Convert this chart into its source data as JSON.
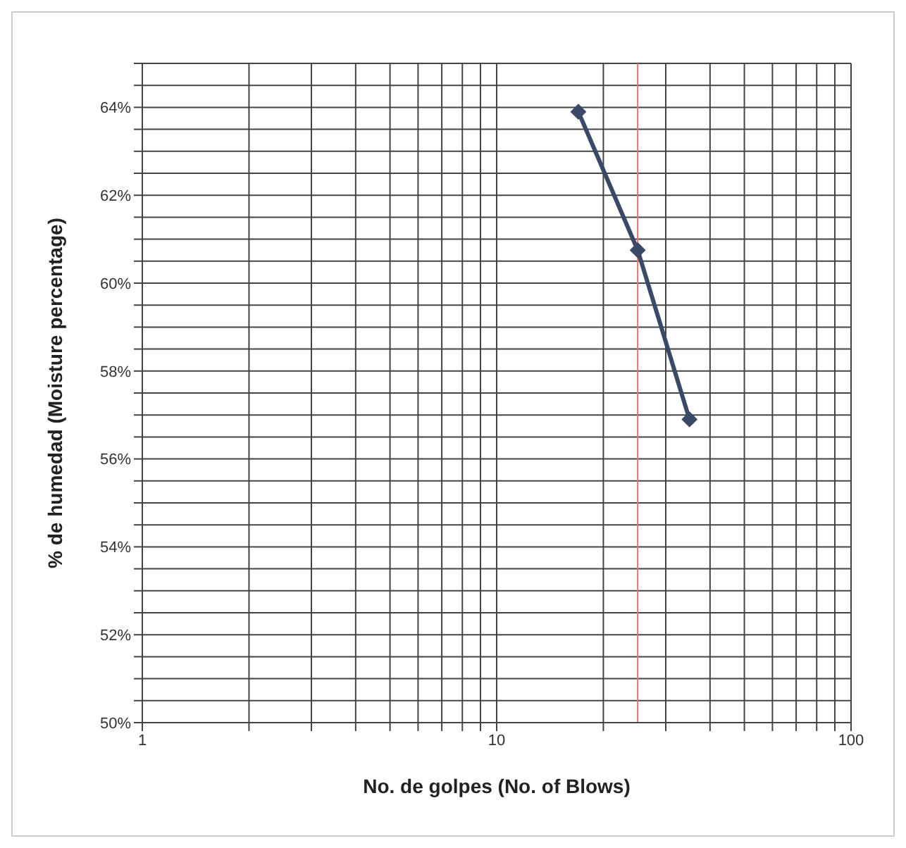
{
  "chart_data": {
    "type": "line",
    "xlabel": "No. de golpes (No. of Blows)",
    "ylabel": "% de humedad (Moisture percentage)",
    "x": [
      17,
      25,
      35
    ],
    "series": [
      {
        "color": "#3a4a66",
        "values": [
          63.9,
          60.75,
          56.9
        ]
      }
    ],
    "log": "x",
    "marker": "diamond",
    "line_style": "solid",
    "grid": true,
    "xlim": [
      1,
      100
    ],
    "xticks": [
      1,
      {
        "value": 2,
        "label": null
      },
      {
        "value": 3,
        "label": null
      },
      {
        "value": 4,
        "label": null
      },
      {
        "value": 5,
        "label": null
      },
      {
        "value": 6,
        "label": null
      },
      {
        "value": 7,
        "label": null
      },
      {
        "value": 8,
        "label": null
      },
      {
        "value": 9,
        "label": null
      },
      10,
      {
        "value": 20,
        "label": null
      },
      {
        "value": 30,
        "label": null
      },
      {
        "value": 40,
        "label": null
      },
      {
        "value": 50,
        "label": null
      },
      {
        "value": 60,
        "label": null
      },
      {
        "value": 70,
        "label": null
      },
      {
        "value": 80,
        "label": null
      },
      {
        "value": 90,
        "label": null
      },
      100
    ],
    "ylim": [
      50,
      65
    ],
    "yticks": [
      {
        "value": 50,
        "label": "50%"
      },
      {
        "value": 50.5,
        "label": null
      },
      {
        "value": 51,
        "label": null
      },
      {
        "value": 51.5,
        "label": null
      },
      {
        "value": 52,
        "label": "52%"
      },
      {
        "value": 52.5,
        "label": null
      },
      {
        "value": 53,
        "label": null
      },
      {
        "value": 53.5,
        "label": null
      },
      {
        "value": 54,
        "label": "54%"
      },
      {
        "value": 54.5,
        "label": null
      },
      {
        "value": 55,
        "label": null
      },
      {
        "value": 55.5,
        "label": null
      },
      {
        "value": 56,
        "label": "56%"
      },
      {
        "value": 56.5,
        "label": null
      },
      {
        "value": 57,
        "label": null
      },
      {
        "value": 57.5,
        "label": null
      },
      {
        "value": 58,
        "label": "58%"
      },
      {
        "value": 58.5,
        "label": null
      },
      {
        "value": 59,
        "label": null
      },
      {
        "value": 59.5,
        "label": null
      },
      {
        "value": 60,
        "label": "60%"
      },
      {
        "value": 60.5,
        "label": null
      },
      {
        "value": 61,
        "label": null
      },
      {
        "value": 61.5,
        "label": null
      },
      {
        "value": 62,
        "label": "62%"
      },
      {
        "value": 62.5,
        "label": null
      },
      {
        "value": 63,
        "label": null
      },
      {
        "value": 63.5,
        "label": null
      },
      {
        "value": 64,
        "label": "64%"
      },
      {
        "value": 64.5,
        "label": null
      },
      {
        "value": 65,
        "label": null
      }
    ],
    "ref_lines": [
      {
        "axis": "x",
        "value": 25,
        "color": "#e87070"
      }
    ]
  }
}
